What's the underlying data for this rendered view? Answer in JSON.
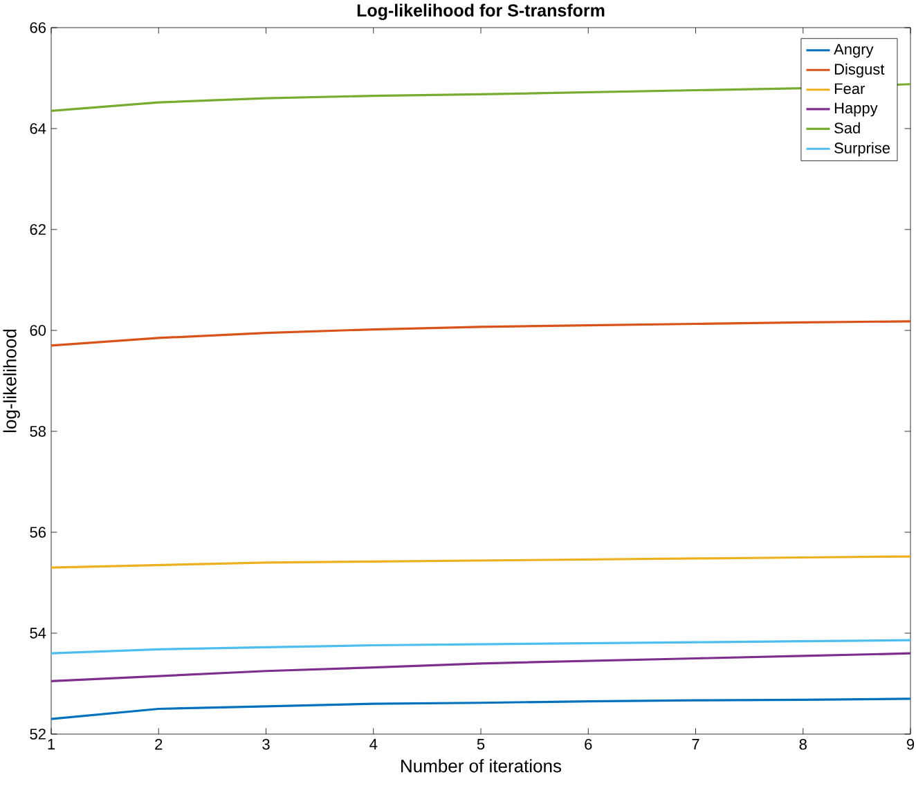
{
  "chart_data": {
    "type": "line",
    "title": "Log-likelihood for S-transform",
    "xlabel": "Number of iterations",
    "ylabel": "log-likelihood",
    "x": [
      1,
      2,
      3,
      4,
      5,
      6,
      7,
      8,
      9
    ],
    "xlim": [
      1,
      9
    ],
    "ylim": [
      52,
      66
    ],
    "xticks": [
      1,
      2,
      3,
      4,
      5,
      6,
      7,
      8,
      9
    ],
    "yticks": [
      52,
      54,
      56,
      58,
      60,
      62,
      64,
      66
    ],
    "legend": "top right",
    "marker": "none",
    "line_style": "solid",
    "series": [
      {
        "name": "Angry",
        "color": "#0072bd",
        "values": [
          52.3,
          52.5,
          52.55,
          52.6,
          52.62,
          52.65,
          52.67,
          52.68,
          52.7
        ]
      },
      {
        "name": "Disgust",
        "color": "#d95319",
        "values": [
          59.7,
          59.85,
          59.95,
          60.02,
          60.07,
          60.1,
          60.13,
          60.16,
          60.18
        ]
      },
      {
        "name": "Fear",
        "color": "#edb120",
        "values": [
          55.3,
          55.35,
          55.4,
          55.42,
          55.44,
          55.46,
          55.48,
          55.5,
          55.52
        ]
      },
      {
        "name": "Happy",
        "color": "#7e2f8e",
        "values": [
          53.05,
          53.15,
          53.25,
          53.32,
          53.4,
          53.45,
          53.5,
          53.55,
          53.6
        ]
      },
      {
        "name": "Sad",
        "color": "#77ac30",
        "values": [
          64.35,
          64.52,
          64.6,
          64.65,
          64.68,
          64.72,
          64.76,
          64.8,
          64.88
        ]
      },
      {
        "name": "Surprise",
        "color": "#4dbeee",
        "values": [
          53.6,
          53.68,
          53.72,
          53.76,
          53.78,
          53.8,
          53.82,
          53.84,
          53.86
        ]
      }
    ]
  }
}
